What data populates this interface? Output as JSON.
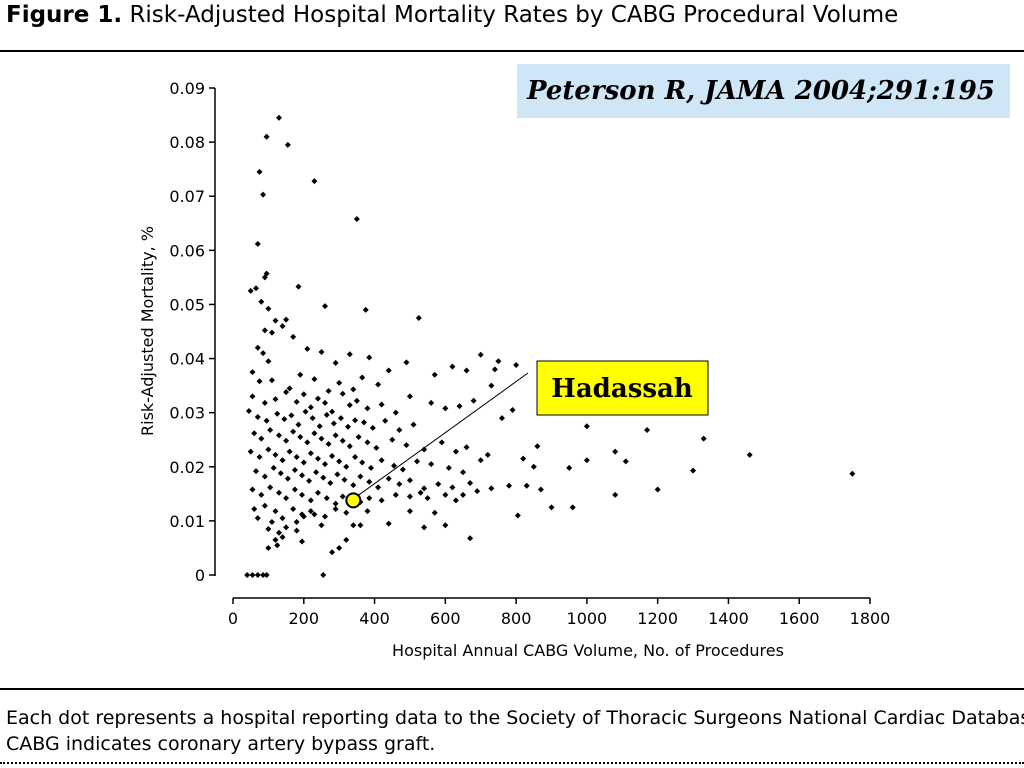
{
  "figure": {
    "label": "Figure 1.",
    "title": "Risk-Adjusted Hospital Mortality Rates by CABG Procedural Volume"
  },
  "citation": "Peterson R, JAMA 2004;291:195",
  "caption": {
    "line1": "Each dot represents a hospital reporting data to the Society of Thoracic Surgeons National Cardiac Database.",
    "line2": "CABG indicates coronary artery bypass graft."
  },
  "colors": {
    "marker": "#000000",
    "highlight_fill": "#ffff00",
    "callout_fill": "#ffff00",
    "citation_bg": "#cfe6f7"
  },
  "chart_data": {
    "type": "scatter",
    "xlabel": "Hospital Annual CABG Volume, No. of Procedures",
    "ylabel": "Risk-Adjusted Mortality, %",
    "xlim": [
      0,
      1800
    ],
    "ylim": [
      0,
      0.09
    ],
    "xticks": [
      "0",
      "200",
      "400",
      "600",
      "800",
      "1000",
      "1200",
      "1400",
      "1600",
      "1800"
    ],
    "yticks": [
      "0",
      "0.01",
      "0.02",
      "0.03",
      "0.04",
      "0.05",
      "0.06",
      "0.07",
      "0.08",
      "0.09"
    ],
    "grid": false,
    "highlight": {
      "label": "Hadassah",
      "x": 340,
      "y": 0.0138
    },
    "points": [
      [
        40,
        0
      ],
      [
        55,
        0
      ],
      [
        70,
        0
      ],
      [
        85,
        0
      ],
      [
        95,
        0
      ],
      [
        255,
        0
      ],
      [
        130,
        0.0845
      ],
      [
        95,
        0.081
      ],
      [
        155,
        0.0795
      ],
      [
        230,
        0.0728
      ],
      [
        75,
        0.0745
      ],
      [
        85,
        0.0703
      ],
      [
        350,
        0.0658
      ],
      [
        70,
        0.0612
      ],
      [
        95,
        0.0557
      ],
      [
        90,
        0.055
      ],
      [
        65,
        0.053
      ],
      [
        50,
        0.0525
      ],
      [
        185,
        0.0533
      ],
      [
        80,
        0.0505
      ],
      [
        100,
        0.0492
      ],
      [
        120,
        0.047
      ],
      [
        150,
        0.0472
      ],
      [
        260,
        0.0497
      ],
      [
        375,
        0.049
      ],
      [
        525,
        0.0475
      ],
      [
        90,
        0.0452
      ],
      [
        110,
        0.0448
      ],
      [
        140,
        0.046
      ],
      [
        70,
        0.042
      ],
      [
        85,
        0.041
      ],
      [
        100,
        0.0395
      ],
      [
        170,
        0.044
      ],
      [
        210,
        0.0418
      ],
      [
        250,
        0.0412
      ],
      [
        290,
        0.0392
      ],
      [
        330,
        0.0408
      ],
      [
        385,
        0.0402
      ],
      [
        490,
        0.0393
      ],
      [
        440,
        0.0378
      ],
      [
        570,
        0.037
      ],
      [
        620,
        0.0385
      ],
      [
        660,
        0.0378
      ],
      [
        700,
        0.0407
      ],
      [
        750,
        0.0395
      ],
      [
        740,
        0.038
      ],
      [
        800,
        0.0388
      ],
      [
        55,
        0.0375
      ],
      [
        75,
        0.0358
      ],
      [
        110,
        0.036
      ],
      [
        160,
        0.0345
      ],
      [
        190,
        0.037
      ],
      [
        230,
        0.0362
      ],
      [
        270,
        0.034
      ],
      [
        300,
        0.0355
      ],
      [
        340,
        0.0343
      ],
      [
        365,
        0.0365
      ],
      [
        410,
        0.0352
      ],
      [
        55,
        0.033
      ],
      [
        90,
        0.0318
      ],
      [
        120,
        0.0325
      ],
      [
        150,
        0.0338
      ],
      [
        180,
        0.032
      ],
      [
        200,
        0.0334
      ],
      [
        220,
        0.031
      ],
      [
        240,
        0.0326
      ],
      [
        260,
        0.0318
      ],
      [
        280,
        0.0302
      ],
      [
        310,
        0.0335
      ],
      [
        330,
        0.0314
      ],
      [
        350,
        0.0322
      ],
      [
        380,
        0.0308
      ],
      [
        420,
        0.0315
      ],
      [
        460,
        0.03
      ],
      [
        500,
        0.033
      ],
      [
        560,
        0.0318
      ],
      [
        600,
        0.0308
      ],
      [
        640,
        0.0312
      ],
      [
        680,
        0.0322
      ],
      [
        730,
        0.035
      ],
      [
        760,
        0.029
      ],
      [
        790,
        0.0305
      ],
      [
        45,
        0.0303
      ],
      [
        70,
        0.0292
      ],
      [
        95,
        0.0285
      ],
      [
        125,
        0.0298
      ],
      [
        145,
        0.0288
      ],
      [
        165,
        0.0295
      ],
      [
        185,
        0.0278
      ],
      [
        205,
        0.0302
      ],
      [
        225,
        0.029
      ],
      [
        245,
        0.0275
      ],
      [
        265,
        0.0296
      ],
      [
        285,
        0.028
      ],
      [
        305,
        0.029
      ],
      [
        325,
        0.0274
      ],
      [
        345,
        0.0286
      ],
      [
        370,
        0.0282
      ],
      [
        395,
        0.0272
      ],
      [
        430,
        0.0285
      ],
      [
        470,
        0.0268
      ],
      [
        510,
        0.0278
      ],
      [
        60,
        0.0262
      ],
      [
        80,
        0.0252
      ],
      [
        105,
        0.0268
      ],
      [
        130,
        0.0258
      ],
      [
        150,
        0.0248
      ],
      [
        170,
        0.0265
      ],
      [
        190,
        0.0255
      ],
      [
        210,
        0.0245
      ],
      [
        230,
        0.0262
      ],
      [
        250,
        0.0252
      ],
      [
        270,
        0.0242
      ],
      [
        290,
        0.0258
      ],
      [
        310,
        0.0248
      ],
      [
        330,
        0.0238
      ],
      [
        355,
        0.0255
      ],
      [
        380,
        0.0245
      ],
      [
        405,
        0.0235
      ],
      [
        450,
        0.025
      ],
      [
        490,
        0.024
      ],
      [
        540,
        0.0232
      ],
      [
        590,
        0.0245
      ],
      [
        630,
        0.0228
      ],
      [
        660,
        0.0236
      ],
      [
        720,
        0.0222
      ],
      [
        860,
        0.0238
      ],
      [
        1000,
        0.0275
      ],
      [
        1080,
        0.0228
      ],
      [
        1170,
        0.0268
      ],
      [
        1330,
        0.0252
      ],
      [
        50,
        0.0228
      ],
      [
        75,
        0.0218
      ],
      [
        100,
        0.0232
      ],
      [
        120,
        0.0222
      ],
      [
        140,
        0.0212
      ],
      [
        160,
        0.0228
      ],
      [
        180,
        0.0218
      ],
      [
        200,
        0.0208
      ],
      [
        220,
        0.0225
      ],
      [
        240,
        0.0215
      ],
      [
        260,
        0.0205
      ],
      [
        280,
        0.022
      ],
      [
        300,
        0.021
      ],
      [
        320,
        0.02
      ],
      [
        345,
        0.0218
      ],
      [
        365,
        0.0208
      ],
      [
        390,
        0.0198
      ],
      [
        420,
        0.0212
      ],
      [
        455,
        0.0202
      ],
      [
        480,
        0.0195
      ],
      [
        520,
        0.021
      ],
      [
        560,
        0.0205
      ],
      [
        610,
        0.0198
      ],
      [
        650,
        0.019
      ],
      [
        700,
        0.0212
      ],
      [
        820,
        0.0215
      ],
      [
        850,
        0.02
      ],
      [
        950,
        0.0198
      ],
      [
        1000,
        0.0212
      ],
      [
        1110,
        0.021
      ],
      [
        1300,
        0.0193
      ],
      [
        1460,
        0.0222
      ],
      [
        1750,
        0.0187
      ],
      [
        65,
        0.0192
      ],
      [
        90,
        0.0182
      ],
      [
        115,
        0.0198
      ],
      [
        135,
        0.0188
      ],
      [
        155,
        0.0178
      ],
      [
        175,
        0.0194
      ],
      [
        195,
        0.0184
      ],
      [
        215,
        0.0174
      ],
      [
        235,
        0.019
      ],
      [
        255,
        0.018
      ],
      [
        275,
        0.017
      ],
      [
        295,
        0.0186
      ],
      [
        315,
        0.0176
      ],
      [
        340,
        0.0166
      ],
      [
        360,
        0.0182
      ],
      [
        385,
        0.0172
      ],
      [
        410,
        0.0162
      ],
      [
        440,
        0.0178
      ],
      [
        470,
        0.0168
      ],
      [
        500,
        0.0175
      ],
      [
        540,
        0.016
      ],
      [
        580,
        0.0168
      ],
      [
        620,
        0.0162
      ],
      [
        670,
        0.017
      ],
      [
        780,
        0.0165
      ],
      [
        830,
        0.0165
      ],
      [
        870,
        0.0158
      ],
      [
        55,
        0.0158
      ],
      [
        80,
        0.0148
      ],
      [
        105,
        0.0162
      ],
      [
        130,
        0.0152
      ],
      [
        150,
        0.0142
      ],
      [
        175,
        0.0158
      ],
      [
        195,
        0.0148
      ],
      [
        220,
        0.0138
      ],
      [
        240,
        0.0152
      ],
      [
        265,
        0.0142
      ],
      [
        290,
        0.0132
      ],
      [
        310,
        0.0145
      ],
      [
        360,
        0.0135
      ],
      [
        385,
        0.0142
      ],
      [
        420,
        0.0138
      ],
      [
        460,
        0.0148
      ],
      [
        500,
        0.0145
      ],
      [
        530,
        0.0152
      ],
      [
        550,
        0.0142
      ],
      [
        600,
        0.0148
      ],
      [
        630,
        0.0138
      ],
      [
        650,
        0.0148
      ],
      [
        690,
        0.0155
      ],
      [
        730,
        0.016
      ],
      [
        1200,
        0.0158
      ],
      [
        1080,
        0.0148
      ],
      [
        60,
        0.0122
      ],
      [
        90,
        0.0128
      ],
      [
        120,
        0.0118
      ],
      [
        170,
        0.0122
      ],
      [
        195,
        0.0112
      ],
      [
        220,
        0.0118
      ],
      [
        260,
        0.0108
      ],
      [
        290,
        0.0122
      ],
      [
        320,
        0.0115
      ],
      [
        500,
        0.0118
      ],
      [
        570,
        0.0115
      ],
      [
        805,
        0.011
      ],
      [
        900,
        0.0125
      ],
      [
        960,
        0.0125
      ],
      [
        70,
        0.0105
      ],
      [
        110,
        0.0098
      ],
      [
        140,
        0.0105
      ],
      [
        180,
        0.0098
      ],
      [
        200,
        0.0108
      ],
      [
        230,
        0.0112
      ],
      [
        380,
        0.0118
      ],
      [
        100,
        0.0085
      ],
      [
        130,
        0.0078
      ],
      [
        150,
        0.0088
      ],
      [
        180,
        0.0082
      ],
      [
        250,
        0.0092
      ],
      [
        340,
        0.0092
      ],
      [
        360,
        0.0092
      ],
      [
        440,
        0.0095
      ],
      [
        540,
        0.0088
      ],
      [
        600,
        0.0092
      ],
      [
        120,
        0.0065
      ],
      [
        140,
        0.007
      ],
      [
        195,
        0.0062
      ],
      [
        300,
        0.005
      ],
      [
        320,
        0.0065
      ],
      [
        670,
        0.0068
      ],
      [
        125,
        0.0055
      ],
      [
        100,
        0.005
      ],
      [
        280,
        0.0042
      ]
    ]
  }
}
